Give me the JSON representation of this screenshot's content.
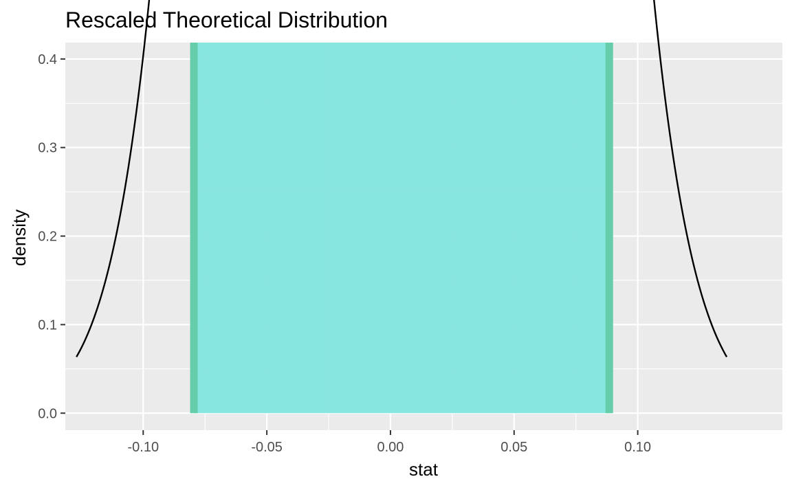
{
  "chart_data": {
    "type": "line",
    "title": "Rescaled Theoretical Distribution",
    "xlabel": "stat",
    "ylabel": "density",
    "xlim": [
      -0.1315,
      0.1585
    ],
    "ylim": [
      -0.0192,
      0.4185
    ],
    "x_ticks": [
      -0.1,
      -0.05,
      0.0,
      0.05,
      0.1
    ],
    "x_tick_labels": [
      "-0.10",
      "-0.05",
      "0.00",
      "0.05",
      "0.10"
    ],
    "y_ticks": [
      0.0,
      0.1,
      0.2,
      0.3,
      0.4
    ],
    "y_tick_labels": [
      "0.0",
      "0.1",
      "0.2",
      "0.3",
      "0.4"
    ],
    "grid": true,
    "curve": {
      "distribution": "normal",
      "mean": 0.0045,
      "sd": 0.0415,
      "x_range": [
        -0.127,
        0.136
      ]
    },
    "shaded_interval": {
      "lower": -0.0795,
      "upper": 0.0885
    },
    "colors": {
      "panel_background": "#EBEBEB",
      "grid_line": "#FFFFFF",
      "curve": "#000000",
      "shade_fill": "#7FE5DC",
      "interval_line": "#66CDAA",
      "curve_in_shade": "#1C7E73",
      "axis_text": "#4D4D4D",
      "title_text": "#000000"
    }
  }
}
